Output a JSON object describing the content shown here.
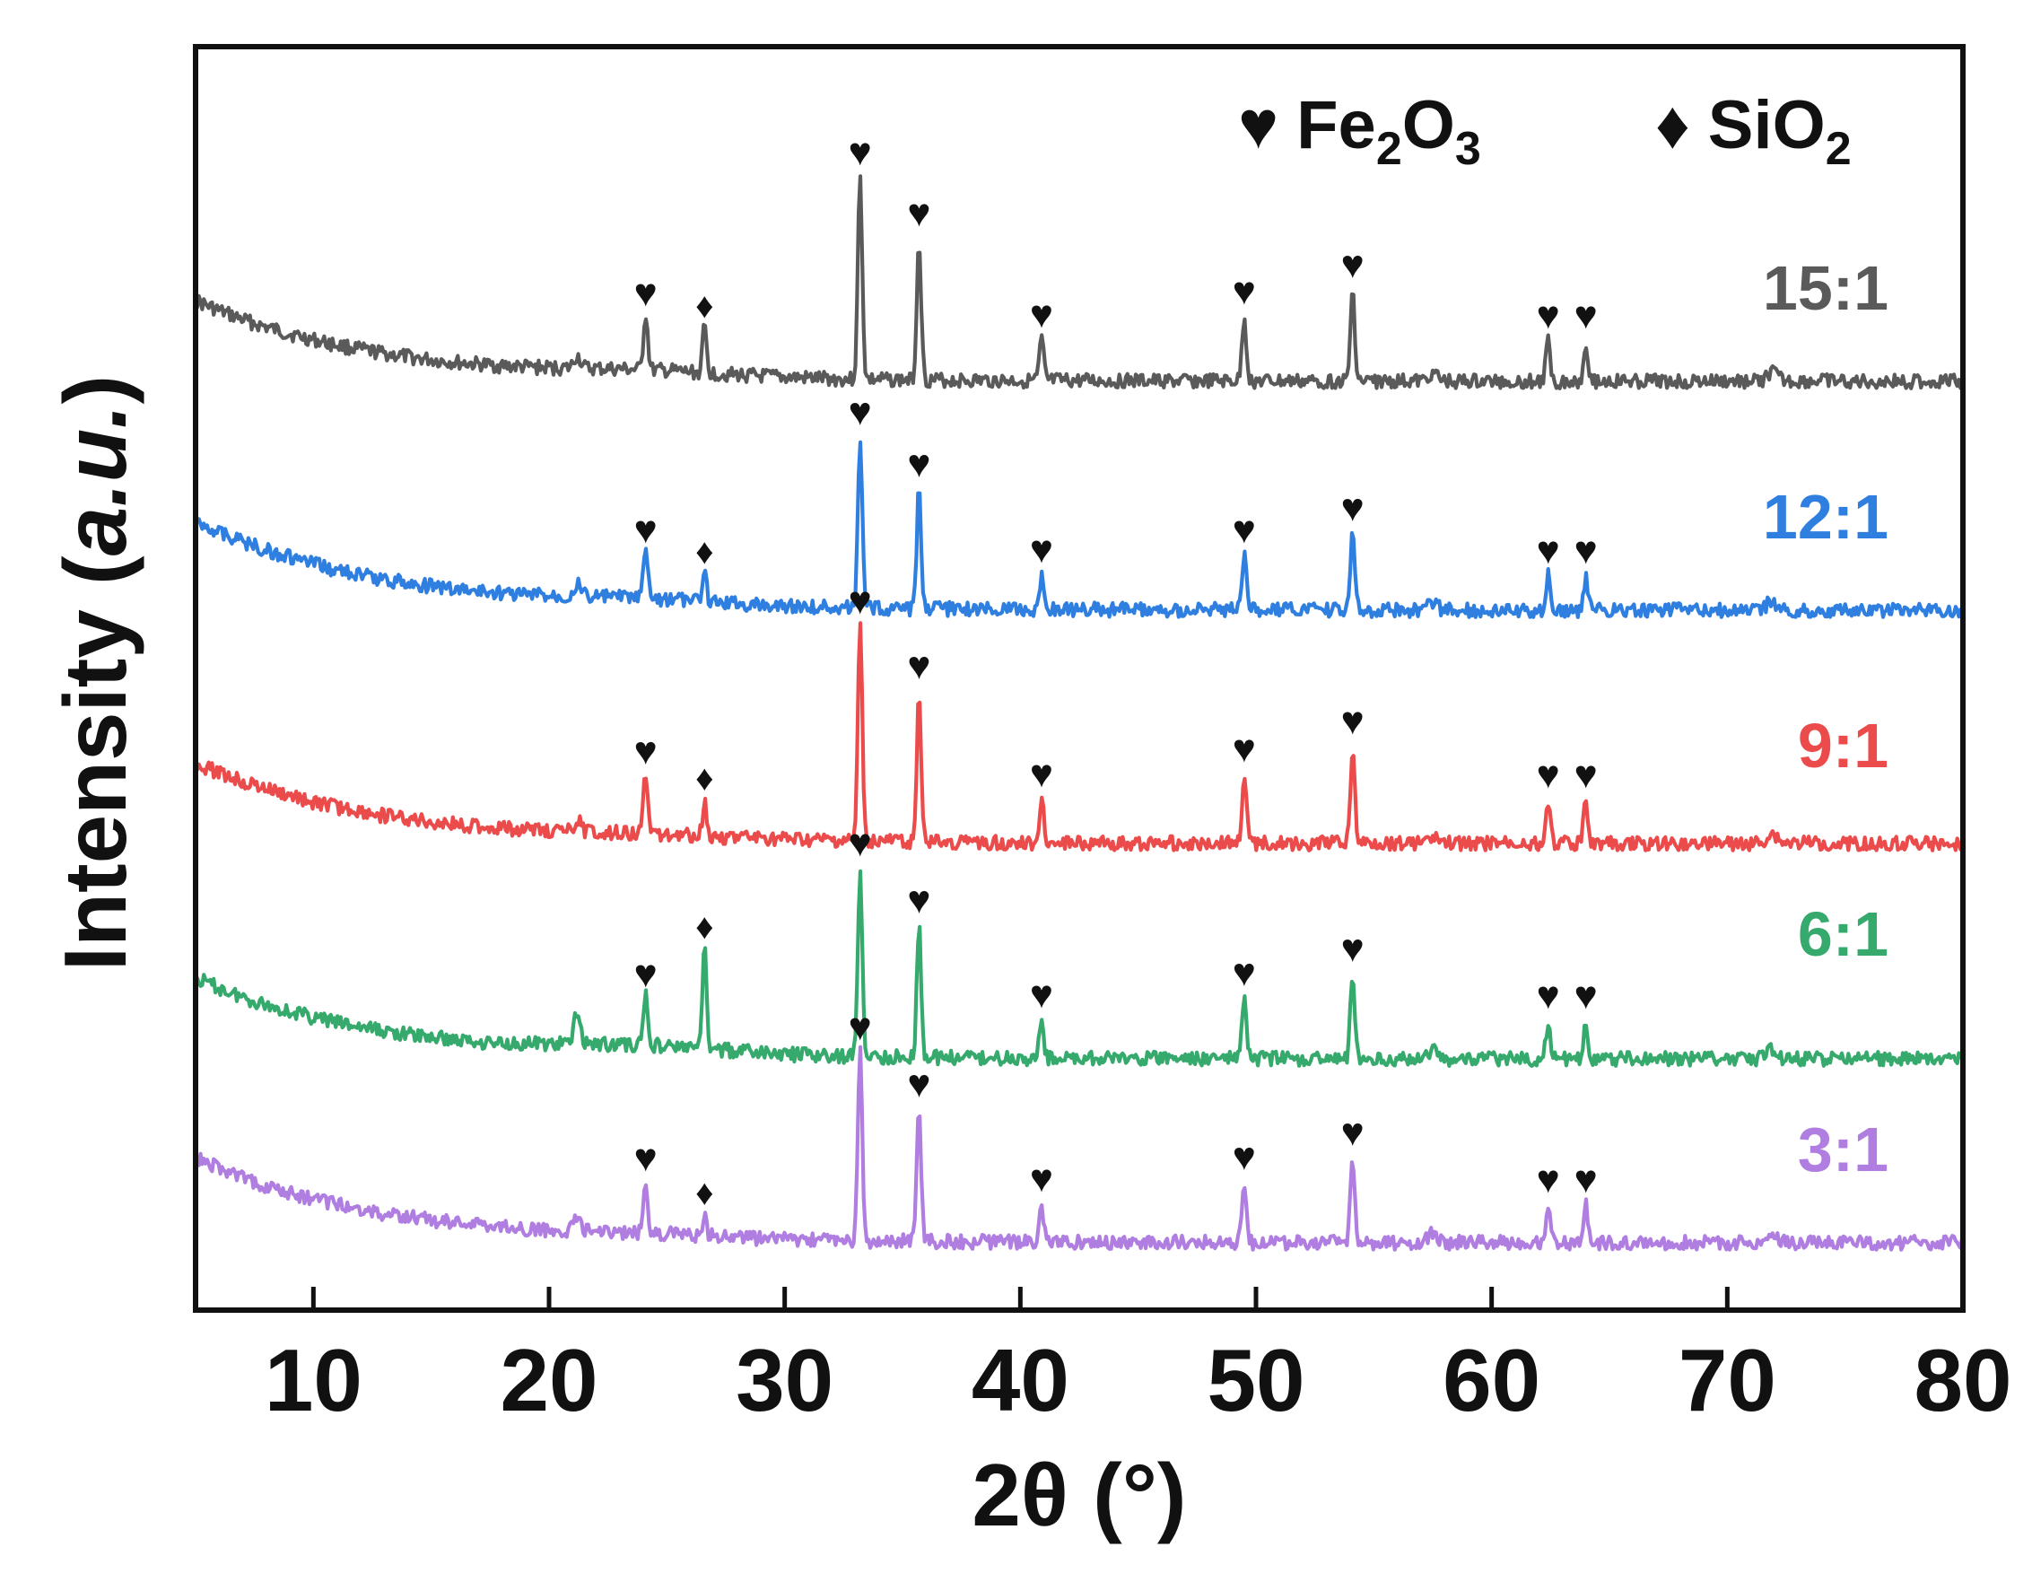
{
  "chart_data": {
    "type": "line",
    "title": "",
    "xlabel": "2θ (°)",
    "ylabel_prefix": "Intensity (",
    "ylabel_italic": "a.u.",
    "ylabel_suffix": ")",
    "xlim": [
      5,
      80
    ],
    "x_ticks": [
      10,
      20,
      30,
      40,
      50,
      60,
      70,
      80
    ],
    "x_tick_labels": [
      "10",
      "20",
      "30",
      "40",
      "50",
      "60",
      "70",
      "80"
    ],
    "y_ticks": "none",
    "grid": false,
    "legend": {
      "placement": "top-right",
      "entries": [
        {
          "marker": "♥",
          "base": "Fe",
          "sub1": "2",
          "mid": "O",
          "sub2": "3"
        },
        {
          "marker": "♦",
          "base": "Si",
          "mid": "O",
          "sub2": "2"
        }
      ]
    },
    "series": [
      {
        "name": "15:1",
        "color": "#5a5a5a",
        "offset": 4,
        "peak_scale": 1.0,
        "sio2_scale": 0.45,
        "hump": 0.4
      },
      {
        "name": "12:1",
        "color": "#2f7fe0",
        "offset": 3,
        "peak_scale": 1.0,
        "sio2_scale": 0.28,
        "hump": 0.4
      },
      {
        "name": "9:1",
        "color": "#ec4b4b",
        "offset": 2,
        "peak_scale": 1.0,
        "sio2_scale": 0.35,
        "hump": 0.3
      },
      {
        "name": "6:1",
        "color": "#36a96c",
        "offset": 1,
        "peak_scale": 1.0,
        "sio2_scale": 1.0,
        "hump": 0.6
      },
      {
        "name": "3:1",
        "color": "#b07ee0",
        "offset": 0,
        "peak_scale": 1.0,
        "sio2_scale": 0.2,
        "hump": 0.25
      }
    ],
    "peaks_fe2o3_2theta": [
      24.1,
      33.2,
      35.7,
      40.9,
      49.5,
      54.1,
      62.4,
      64.0
    ],
    "peaks_fe2o3_relative_intensity": [
      0.28,
      1.0,
      0.7,
      0.2,
      0.32,
      0.45,
      0.2,
      0.2
    ],
    "peaks_sio2_2theta": [
      26.6
    ],
    "peak_marker_fe2o3": "♥",
    "peak_marker_sio2": "♦"
  }
}
